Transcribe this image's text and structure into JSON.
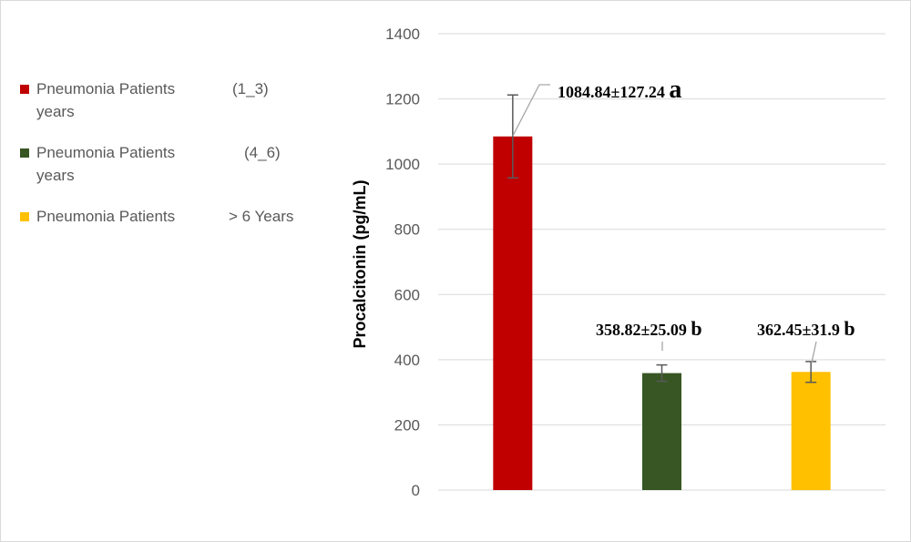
{
  "chart_data": {
    "type": "bar",
    "categories": [
      "Pneumonia Patients (1_3) years",
      "Pneumonia Patients (4_6) years",
      "Pneumonia Patients > 6 Years"
    ],
    "values": [
      1084.84,
      358.82,
      362.45
    ],
    "error": [
      127.24,
      25.09,
      31.9
    ],
    "colors": [
      "#c00000",
      "#375623",
      "#ffc000"
    ],
    "xlabel": "",
    "ylabel": "Procalcitonin  (pg/mL)",
    "ylim": [
      0,
      1400
    ],
    "yticks": [
      "0",
      "200",
      "400",
      "600",
      "800",
      "1000",
      "1200",
      "1400"
    ],
    "grid": true,
    "legend_position": "left",
    "data_labels": [
      {
        "value": "1084.84±127.24",
        "letter": "a"
      },
      {
        "value": "358.82±25.09",
        "letter": "b"
      },
      {
        "value": "362.45±31.9",
        "letter": "b"
      }
    ]
  },
  "legend": {
    "items": [
      {
        "part_a": "Pneumonia Patients",
        "part_b": "(1_3)",
        "part_c": "years",
        "color": "#c00000"
      },
      {
        "part_a": "Pneumonia Patients",
        "part_b": "(4_6)",
        "part_c": "years",
        "color": "#375623"
      },
      {
        "part_a": "Pneumonia Patients",
        "part_b": "> 6  Years",
        "part_c": "",
        "color": "#ffc000"
      }
    ]
  }
}
